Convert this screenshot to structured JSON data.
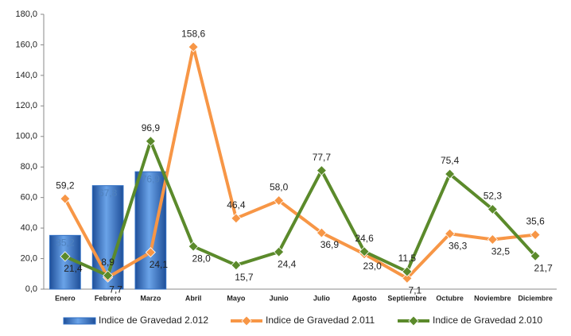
{
  "chart_data": {
    "type": "bar-line",
    "categories": [
      "Enero",
      "Febrero",
      "Marzo",
      "Abril",
      "Mayo",
      "Junio",
      "Julio",
      "Agosto",
      "Septiembre",
      "Octubre",
      "Noviembre",
      "Diciembre"
    ],
    "series": [
      {
        "name": "Indice de Gravedad 2.012",
        "type": "bar",
        "color": "#2f6fc4",
        "values": [
          35.2,
          67.8,
          76.9,
          null,
          null,
          null,
          null,
          null,
          null,
          null,
          null,
          null
        ],
        "value_labels": [
          "35,2",
          "67,8",
          "76,9",
          null,
          null,
          null,
          null,
          null,
          null,
          null,
          null,
          null
        ]
      },
      {
        "name": "Indice de Gravedad 2.011",
        "type": "line",
        "color": "#f79646",
        "values": [
          59.2,
          7.7,
          24.1,
          158.6,
          46.4,
          58.0,
          36.9,
          23.0,
          7.1,
          36.3,
          32.5,
          35.6
        ],
        "value_labels": [
          "59,2",
          "7,7",
          "24,1",
          "158,6",
          "46,4",
          "58,0",
          "36,9",
          "23,0",
          "7,1",
          "36,3",
          "32,5",
          "35,6"
        ]
      },
      {
        "name": "Indice de Gravedad 2.010",
        "type": "line",
        "color": "#5b8a2b",
        "values": [
          21.4,
          8.9,
          96.9,
          28.0,
          15.7,
          24.4,
          77.7,
          24.6,
          11.5,
          75.4,
          52.3,
          21.7
        ],
        "value_labels": [
          "21,4",
          "8,9",
          "96,9",
          "28,0",
          "15,7",
          "24,4",
          "77,7",
          "24,6",
          "11,5",
          "75,4",
          "52,3",
          "21,7"
        ]
      }
    ],
    "ylim": [
      0,
      180
    ],
    "yticks": [
      {
        "value": 0,
        "label": "0,0"
      },
      {
        "value": 20,
        "label": "20,0"
      },
      {
        "value": 40,
        "label": "40,0"
      },
      {
        "value": 60,
        "label": "60,0"
      },
      {
        "value": 80,
        "label": "80,0"
      },
      {
        "value": 100,
        "label": "100,0"
      },
      {
        "value": 120,
        "label": "120,0"
      },
      {
        "value": 140,
        "label": "140,0"
      },
      {
        "value": 160,
        "label": "160,0"
      },
      {
        "value": 180,
        "label": "180,0"
      }
    ],
    "grid": false,
    "legend": "bottom"
  }
}
